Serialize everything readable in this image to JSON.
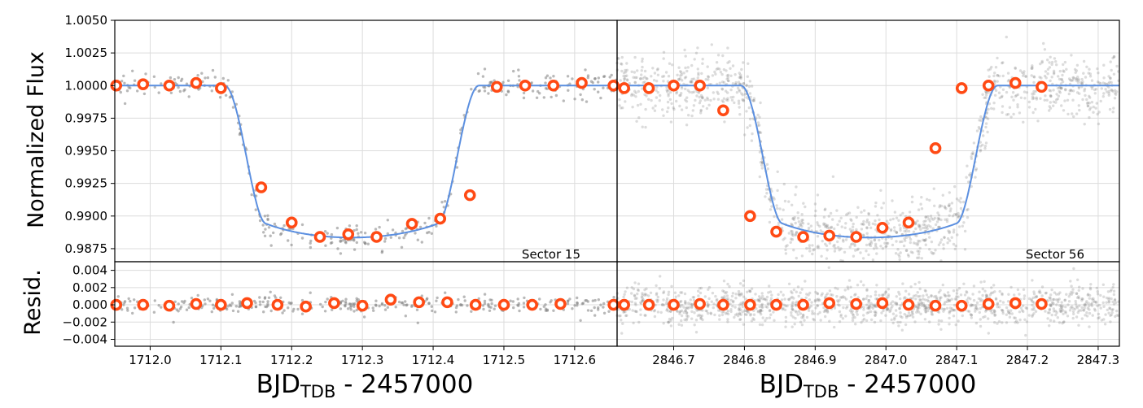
{
  "chart_data": {
    "type": "scatter",
    "y_label_main": "Normalized Flux",
    "y_label_resid": "Resid.",
    "x_label_left": {
      "main": "BJD",
      "sub": "TDB",
      "rest": " - 2457000"
    },
    "x_label_right": {
      "main": "BJD",
      "sub": "TDB",
      "rest": " - 2457000"
    },
    "flux_ylim": [
      0.9865,
      1.005
    ],
    "resid_ylim": [
      -0.0048,
      0.005
    ],
    "flux_yticks": [
      "1.0050",
      "1.0025",
      "1.0000",
      "0.9975",
      "0.9950",
      "0.9925",
      "0.9900",
      "0.9875"
    ],
    "flux_ytick_values": [
      1.005,
      1.0025,
      1.0,
      0.9975,
      0.995,
      0.9925,
      0.99,
      0.9875
    ],
    "resid_yticks": [
      "0.004",
      "0.002",
      "0.000",
      "−0.002",
      "−0.004"
    ],
    "resid_ytick_values": [
      0.004,
      0.002,
      0.0,
      -0.002,
      -0.004
    ],
    "colors": {
      "model": "#5b8fe0",
      "binned": "#ff4a14",
      "raw": "#808080"
    },
    "panels": [
      {
        "sector_label": "Sector 15",
        "xlim": [
          1711.95,
          1712.66
        ],
        "xticks": [
          "1712.0",
          "1712.1",
          "1712.2",
          "1712.3",
          "1712.4",
          "1712.5",
          "1712.6"
        ],
        "xtick_values": [
          1712.0,
          1712.1,
          1712.2,
          1712.3,
          1712.4,
          1712.5,
          1712.6
        ],
        "model": {
          "t1": 1712.105,
          "t4": 1712.465,
          "ingress": 0.058,
          "depth": 0.01165
        },
        "raw_scatter": {
          "flux": 0.0005,
          "resid": 0.0005,
          "points": 330
        },
        "binned_flux": [
          [
            1711.952,
            1.0
          ],
          [
            1711.99,
            1.0001
          ],
          [
            1712.027,
            1.0
          ],
          [
            1712.065,
            1.0002
          ],
          [
            1712.1,
            0.9998
          ],
          [
            1712.157,
            0.9922
          ],
          [
            1712.2,
            0.9895
          ],
          [
            1712.24,
            0.9884
          ],
          [
            1712.28,
            0.9886
          ],
          [
            1712.32,
            0.9884
          ],
          [
            1712.37,
            0.9894
          ],
          [
            1712.41,
            0.9898
          ],
          [
            1712.452,
            0.9916
          ],
          [
            1712.49,
            0.9999
          ],
          [
            1712.53,
            1.0
          ],
          [
            1712.57,
            1.0
          ],
          [
            1712.61,
            1.0002
          ],
          [
            1712.655,
            1.0
          ]
        ],
        "binned_resid": [
          [
            1711.952,
            0.0
          ],
          [
            1711.99,
            0.0
          ],
          [
            1712.027,
            -0.0001
          ],
          [
            1712.065,
            0.0001
          ],
          [
            1712.1,
            0.0
          ],
          [
            1712.137,
            0.0002
          ],
          [
            1712.18,
            0.0
          ],
          [
            1712.22,
            -0.0002
          ],
          [
            1712.26,
            0.0002
          ],
          [
            1712.3,
            -0.0001
          ],
          [
            1712.34,
            0.0006
          ],
          [
            1712.38,
            0.0003
          ],
          [
            1712.42,
            0.0003
          ],
          [
            1712.46,
            0.0
          ],
          [
            1712.5,
            0.0
          ],
          [
            1712.54,
            0.0
          ],
          [
            1712.58,
            0.0001
          ],
          [
            1712.655,
            0.0
          ]
        ]
      },
      {
        "sector_label": "Sector 56",
        "xlim": [
          2846.62,
          2847.33
        ],
        "xticks": [
          "2846.7",
          "2846.8",
          "2846.9",
          "2847.0",
          "2847.1",
          "2847.2",
          "2847.3"
        ],
        "xtick_values": [
          2846.7,
          2846.8,
          2846.9,
          2847.0,
          2847.1,
          2847.2,
          2847.3
        ],
        "model": {
          "t1": 2846.795,
          "t4": 2847.158,
          "ingress": 0.058,
          "depth": 0.01165
        },
        "raw_scatter": {
          "flux": 0.0012,
          "resid": 0.0011,
          "points": 1300
        },
        "binned_flux": [
          [
            2846.63,
            0.9998
          ],
          [
            2846.665,
            0.9998
          ],
          [
            2846.7,
            1.0
          ],
          [
            2846.737,
            1.0
          ],
          [
            2846.77,
            0.9981
          ],
          [
            2846.808,
            0.99
          ],
          [
            2846.845,
            0.9888
          ],
          [
            2846.883,
            0.9884
          ],
          [
            2846.92,
            0.9885
          ],
          [
            2846.958,
            0.9884
          ],
          [
            2846.995,
            0.9891
          ],
          [
            2847.032,
            0.9895
          ],
          [
            2847.07,
            0.9952
          ],
          [
            2847.107,
            0.9998
          ],
          [
            2847.145,
            1.0
          ],
          [
            2847.183,
            1.0002
          ],
          [
            2847.22,
            0.9999
          ]
        ],
        "binned_resid": [
          [
            2846.63,
            0.0
          ],
          [
            2846.665,
            0.0
          ],
          [
            2846.7,
            0.0
          ],
          [
            2846.737,
            0.0001
          ],
          [
            2846.77,
            0.0
          ],
          [
            2846.808,
            0.0
          ],
          [
            2846.845,
            0.0
          ],
          [
            2846.883,
            0.0
          ],
          [
            2846.92,
            0.0002
          ],
          [
            2846.958,
            0.0001
          ],
          [
            2846.995,
            0.0002
          ],
          [
            2847.032,
            0.0
          ],
          [
            2847.07,
            -0.0001
          ],
          [
            2847.107,
            -0.0001
          ],
          [
            2847.145,
            0.0001
          ],
          [
            2847.183,
            0.0002
          ],
          [
            2847.22,
            0.0001
          ]
        ]
      }
    ]
  }
}
